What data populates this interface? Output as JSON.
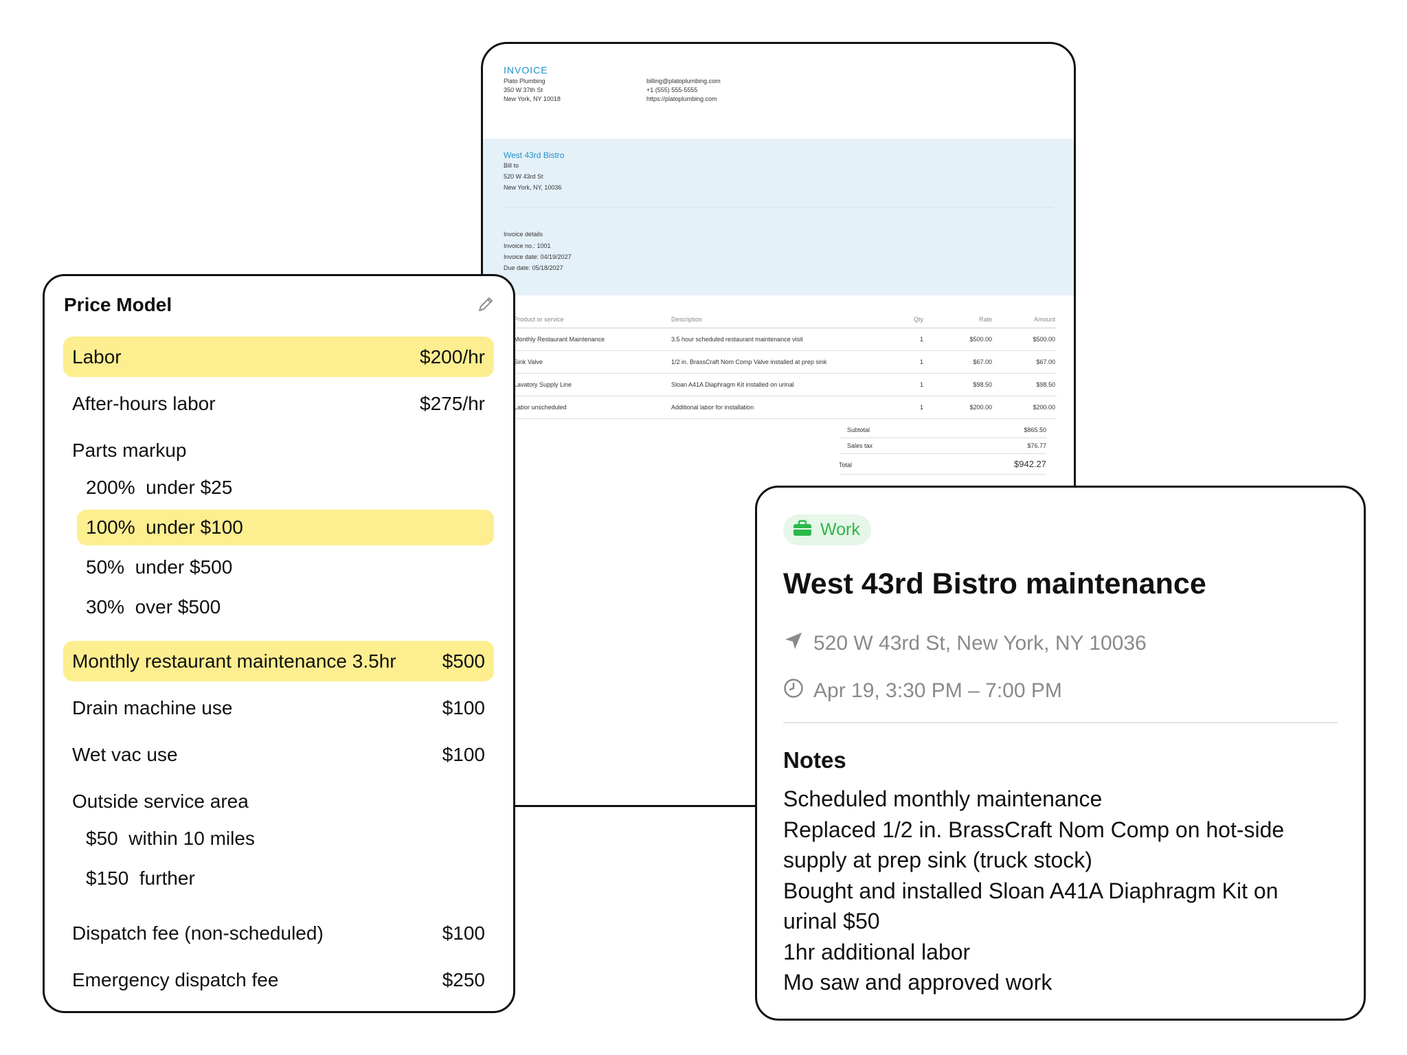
{
  "invoice": {
    "title": "INVOICE",
    "company": [
      "Plato Plumbing",
      "350 W 37th St",
      "New York, NY 10018"
    ],
    "contact": [
      "billing@platoplumbing.com",
      "+1 (555) 555-5555",
      "https://platoplumbing.com"
    ],
    "client_name": "West 43rd Bistro",
    "client_lines": [
      "Bill to",
      "520 W 43rd St",
      "New York, NY, 10036"
    ],
    "details": [
      "Invoice details",
      "Invoice no.: 1001",
      "Invoice date: 04/19/2027",
      "Due date: 05/18/2027"
    ],
    "columns": {
      "product": "Product or service",
      "description": "Description",
      "qty": "Qty",
      "rate": "Rate",
      "amount": "Amount"
    },
    "rows": [
      {
        "product": "Monthly Restaurant Maintenance",
        "description": "3.5 hour scheduled restaurant maintenance visit",
        "qty": "1",
        "rate": "$500.00",
        "amount": "$500.00"
      },
      {
        "product": "Sink Valve",
        "description": "1/2 in. BrassCraft Nom Comp Valve installed at prep sink",
        "qty": "1",
        "rate": "$67.00",
        "amount": "$67.00"
      },
      {
        "product": "Lavatory Supply Line",
        "description": "Sloan A41A Diaphragm Kit installed on urinal",
        "qty": "1",
        "rate": "$98.50",
        "amount": "$98.50"
      },
      {
        "product": "Labor unscheduled",
        "description": "Additional labor for installation",
        "qty": "1",
        "rate": "$200.00",
        "amount": "$200.00"
      }
    ],
    "subtotal_label": "Subtotal",
    "subtotal": "$865.50",
    "tax_label": "Sales tax",
    "tax": "$76.77",
    "total_label": "Total",
    "total": "$942.27"
  },
  "price_model": {
    "title": "Price Model",
    "rows": [
      {
        "label": "Labor",
        "value": "$200/hr",
        "highlight": true
      },
      {
        "label": "After-hours labor",
        "value": "$275/hr"
      },
      {
        "label": "Parts markup",
        "value": ""
      },
      {
        "label": "200%  under $25",
        "value": "",
        "indent": true
      },
      {
        "label": "100%  under $100",
        "value": "",
        "indent": true,
        "highlight": true
      },
      {
        "label": "50%  under $500",
        "value": "",
        "indent": true
      },
      {
        "label": "30%  over $500",
        "value": "",
        "indent": true
      },
      {
        "label": "Monthly restaurant maintenance 3.5hr",
        "value": "$500",
        "highlight": true
      },
      {
        "label": "Drain machine use",
        "value": "$100"
      },
      {
        "label": "Wet vac use",
        "value": "$100"
      },
      {
        "label": "Outside service area",
        "value": ""
      },
      {
        "label": "$50  within 10 miles",
        "value": "",
        "indent": true
      },
      {
        "label": "$150  further",
        "value": "",
        "indent": true
      },
      {
        "label": "Dispatch fee (non-scheduled)",
        "value": "$100"
      },
      {
        "label": "Emergency dispatch fee",
        "value": "$250"
      }
    ],
    "highlight_color": "#fdee90"
  },
  "event": {
    "tag": "Work",
    "tag_color": "#2db84a",
    "title": "West 43rd Bistro maintenance",
    "location": "520 W 43rd St, New York, NY 10036",
    "time": "Apr 19, 3:30 PM – 7:00 PM",
    "notes_heading": "Notes",
    "notes": [
      "Scheduled monthly maintenance",
      "Replaced 1/2 in. BrassCraft Nom Comp on hot-side",
      "supply at prep sink (truck stock)",
      "Bought and installed Sloan A41A Diaphragm Kit on",
      "urinal $50",
      "1hr additional labor",
      "Mo saw and approved work"
    ]
  }
}
